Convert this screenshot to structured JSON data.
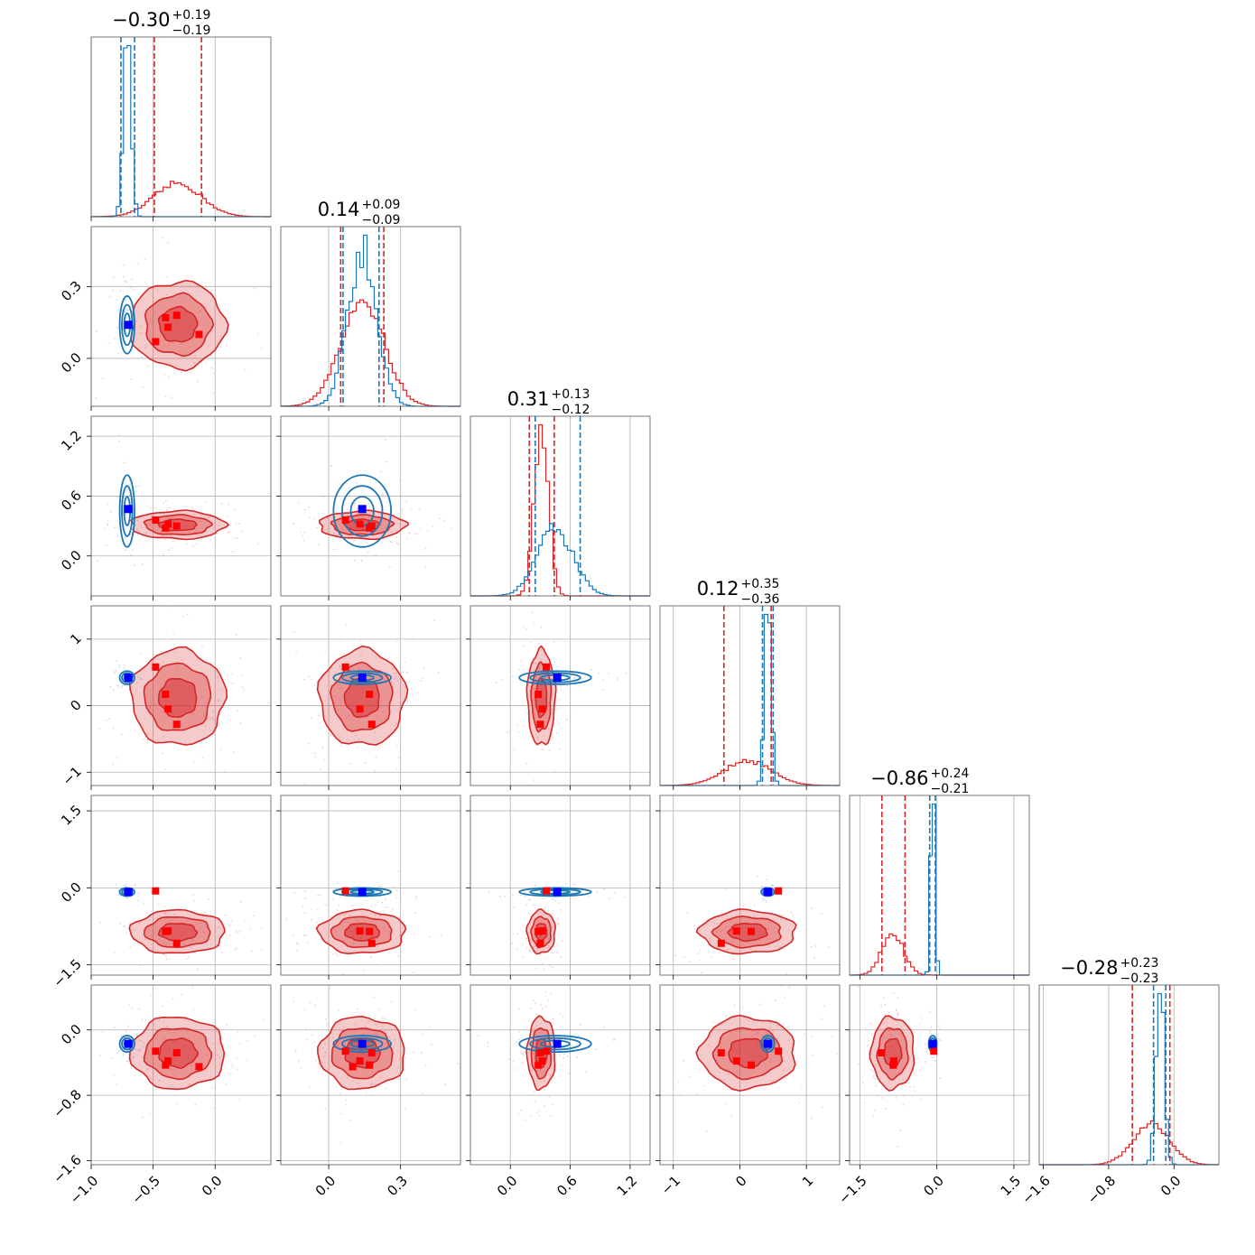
{
  "chart_data": {
    "type": "corner",
    "grid": true,
    "colors": {
      "series_a": "#d62728",
      "series_b": "#1f77b4",
      "marker_a": "#ff0000",
      "marker_b": "#0000ff"
    },
    "params": [
      {
        "title": "−0.30",
        "sup": "+0.19",
        "sub": "−0.19",
        "range": [
          -1.0,
          0.45
        ],
        "ticks": [
          -1.0,
          -0.5,
          0.0
        ],
        "tick_labels": [
          "−1.0",
          "−0.5",
          "0.0"
        ],
        "a": {
          "mean": -0.3,
          "sd": 0.19,
          "q": [
            -0.49,
            -0.11
          ]
        },
        "b": {
          "mean": -0.71,
          "sd": 0.03,
          "q": [
            -0.76,
            -0.65
          ]
        },
        "markers_a": [
          -0.48,
          -0.4,
          -0.38,
          -0.31,
          -0.13,
          -0.5
        ],
        "marker_b": -0.7
      },
      {
        "title": "0.14",
        "sup": "+0.09",
        "sub": "−0.09",
        "range": [
          -0.2,
          0.55
        ],
        "ticks": [
          0.0,
          0.3
        ],
        "tick_labels": [
          "0.0",
          "0.3"
        ],
        "a": {
          "mean": 0.14,
          "sd": 0.09,
          "q": [
            0.05,
            0.23
          ]
        },
        "b": {
          "mean": 0.14,
          "sd": 0.06,
          "q": [
            0.06,
            0.21
          ]
        },
        "markers_a": [
          0.07,
          0.17,
          0.13,
          0.18,
          0.1
        ],
        "marker_b": 0.14
      },
      {
        "title": "0.31",
        "sup": "+0.13",
        "sub": "−0.12",
        "range": [
          -0.4,
          1.4
        ],
        "ticks": [
          0.0,
          0.6,
          1.2
        ],
        "tick_labels": [
          "0.0",
          "0.6",
          "1.2"
        ],
        "a": {
          "mean": 0.31,
          "sd": 0.07,
          "q": [
            0.19,
            0.44
          ]
        },
        "b": {
          "mean": 0.45,
          "sd": 0.18,
          "q": [
            0.25,
            0.7
          ]
        },
        "markers_a": [
          0.36,
          0.28,
          0.32,
          0.3
        ],
        "marker_b": 0.47
      },
      {
        "title": "0.12",
        "sup": "+0.35",
        "sub": "−0.36",
        "range": [
          -1.2,
          1.5
        ],
        "ticks": [
          -1,
          0,
          1
        ],
        "tick_labels": [
          "−1",
          "0",
          "1"
        ],
        "a": {
          "mean": 0.12,
          "sd": 0.36,
          "q": [
            -0.24,
            0.47
          ]
        },
        "b": {
          "mean": 0.42,
          "sd": 0.05,
          "q": [
            0.34,
            0.5
          ]
        },
        "markers_a": [
          0.58,
          0.17,
          -0.05,
          -0.28
        ],
        "marker_b": 0.42
      },
      {
        "title": "−0.86",
        "sup": "+0.24",
        "sub": "−0.21",
        "range": [
          -1.7,
          1.8
        ],
        "ticks": [
          -1.5,
          0.0,
          1.5
        ],
        "tick_labels": [
          "−1.5",
          "0.0",
          "1.5"
        ],
        "a": {
          "mean": -0.86,
          "sd": 0.21,
          "q": [
            -1.07,
            -0.62
          ]
        },
        "b": {
          "mean": -0.08,
          "sd": 0.04,
          "q": [
            -0.14,
            -0.03
          ]
        },
        "markers_a": [
          -0.06,
          -0.85,
          -0.84,
          -1.08
        ],
        "marker_b": -0.08
      },
      {
        "title": "−0.28",
        "sup": "+0.23",
        "sub": "−0.23",
        "range": [
          -1.65,
          0.55
        ],
        "ticks": [
          -1.6,
          -0.8,
          0.0
        ],
        "tick_labels": [
          "−1.6",
          "−0.8",
          "0.0"
        ],
        "a": {
          "mean": -0.28,
          "sd": 0.22,
          "q": [
            -0.51,
            -0.05
          ]
        },
        "b": {
          "mean": -0.17,
          "sd": 0.05,
          "q": [
            -0.25,
            -0.1
          ]
        },
        "markers_a": [
          -0.26,
          -0.43,
          -0.38,
          -0.28,
          -0.45
        ],
        "marker_b": -0.17
      }
    ]
  }
}
